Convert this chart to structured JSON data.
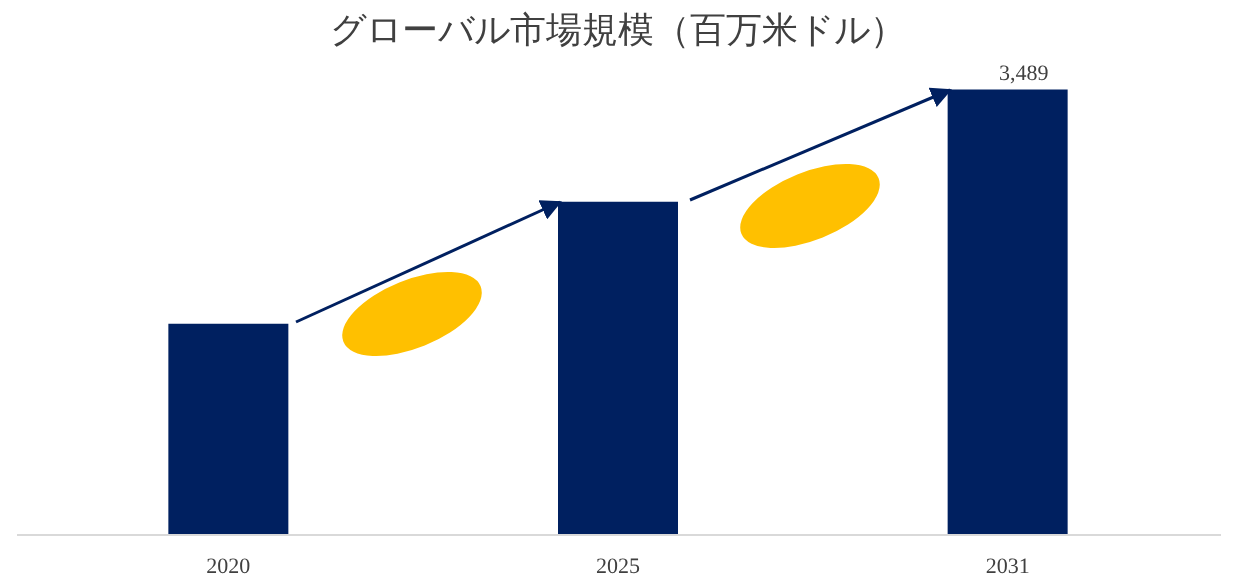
{
  "chart_data": {
    "type": "bar",
    "title": "グローバル市場規模（百万米ドル）",
    "categories": [
      "2020",
      "2025",
      "2031"
    ],
    "values": [
      1650,
      2609,
      3489
    ],
    "value_labels": [
      null,
      null,
      "3,489"
    ],
    "color": "#002060"
  }
}
